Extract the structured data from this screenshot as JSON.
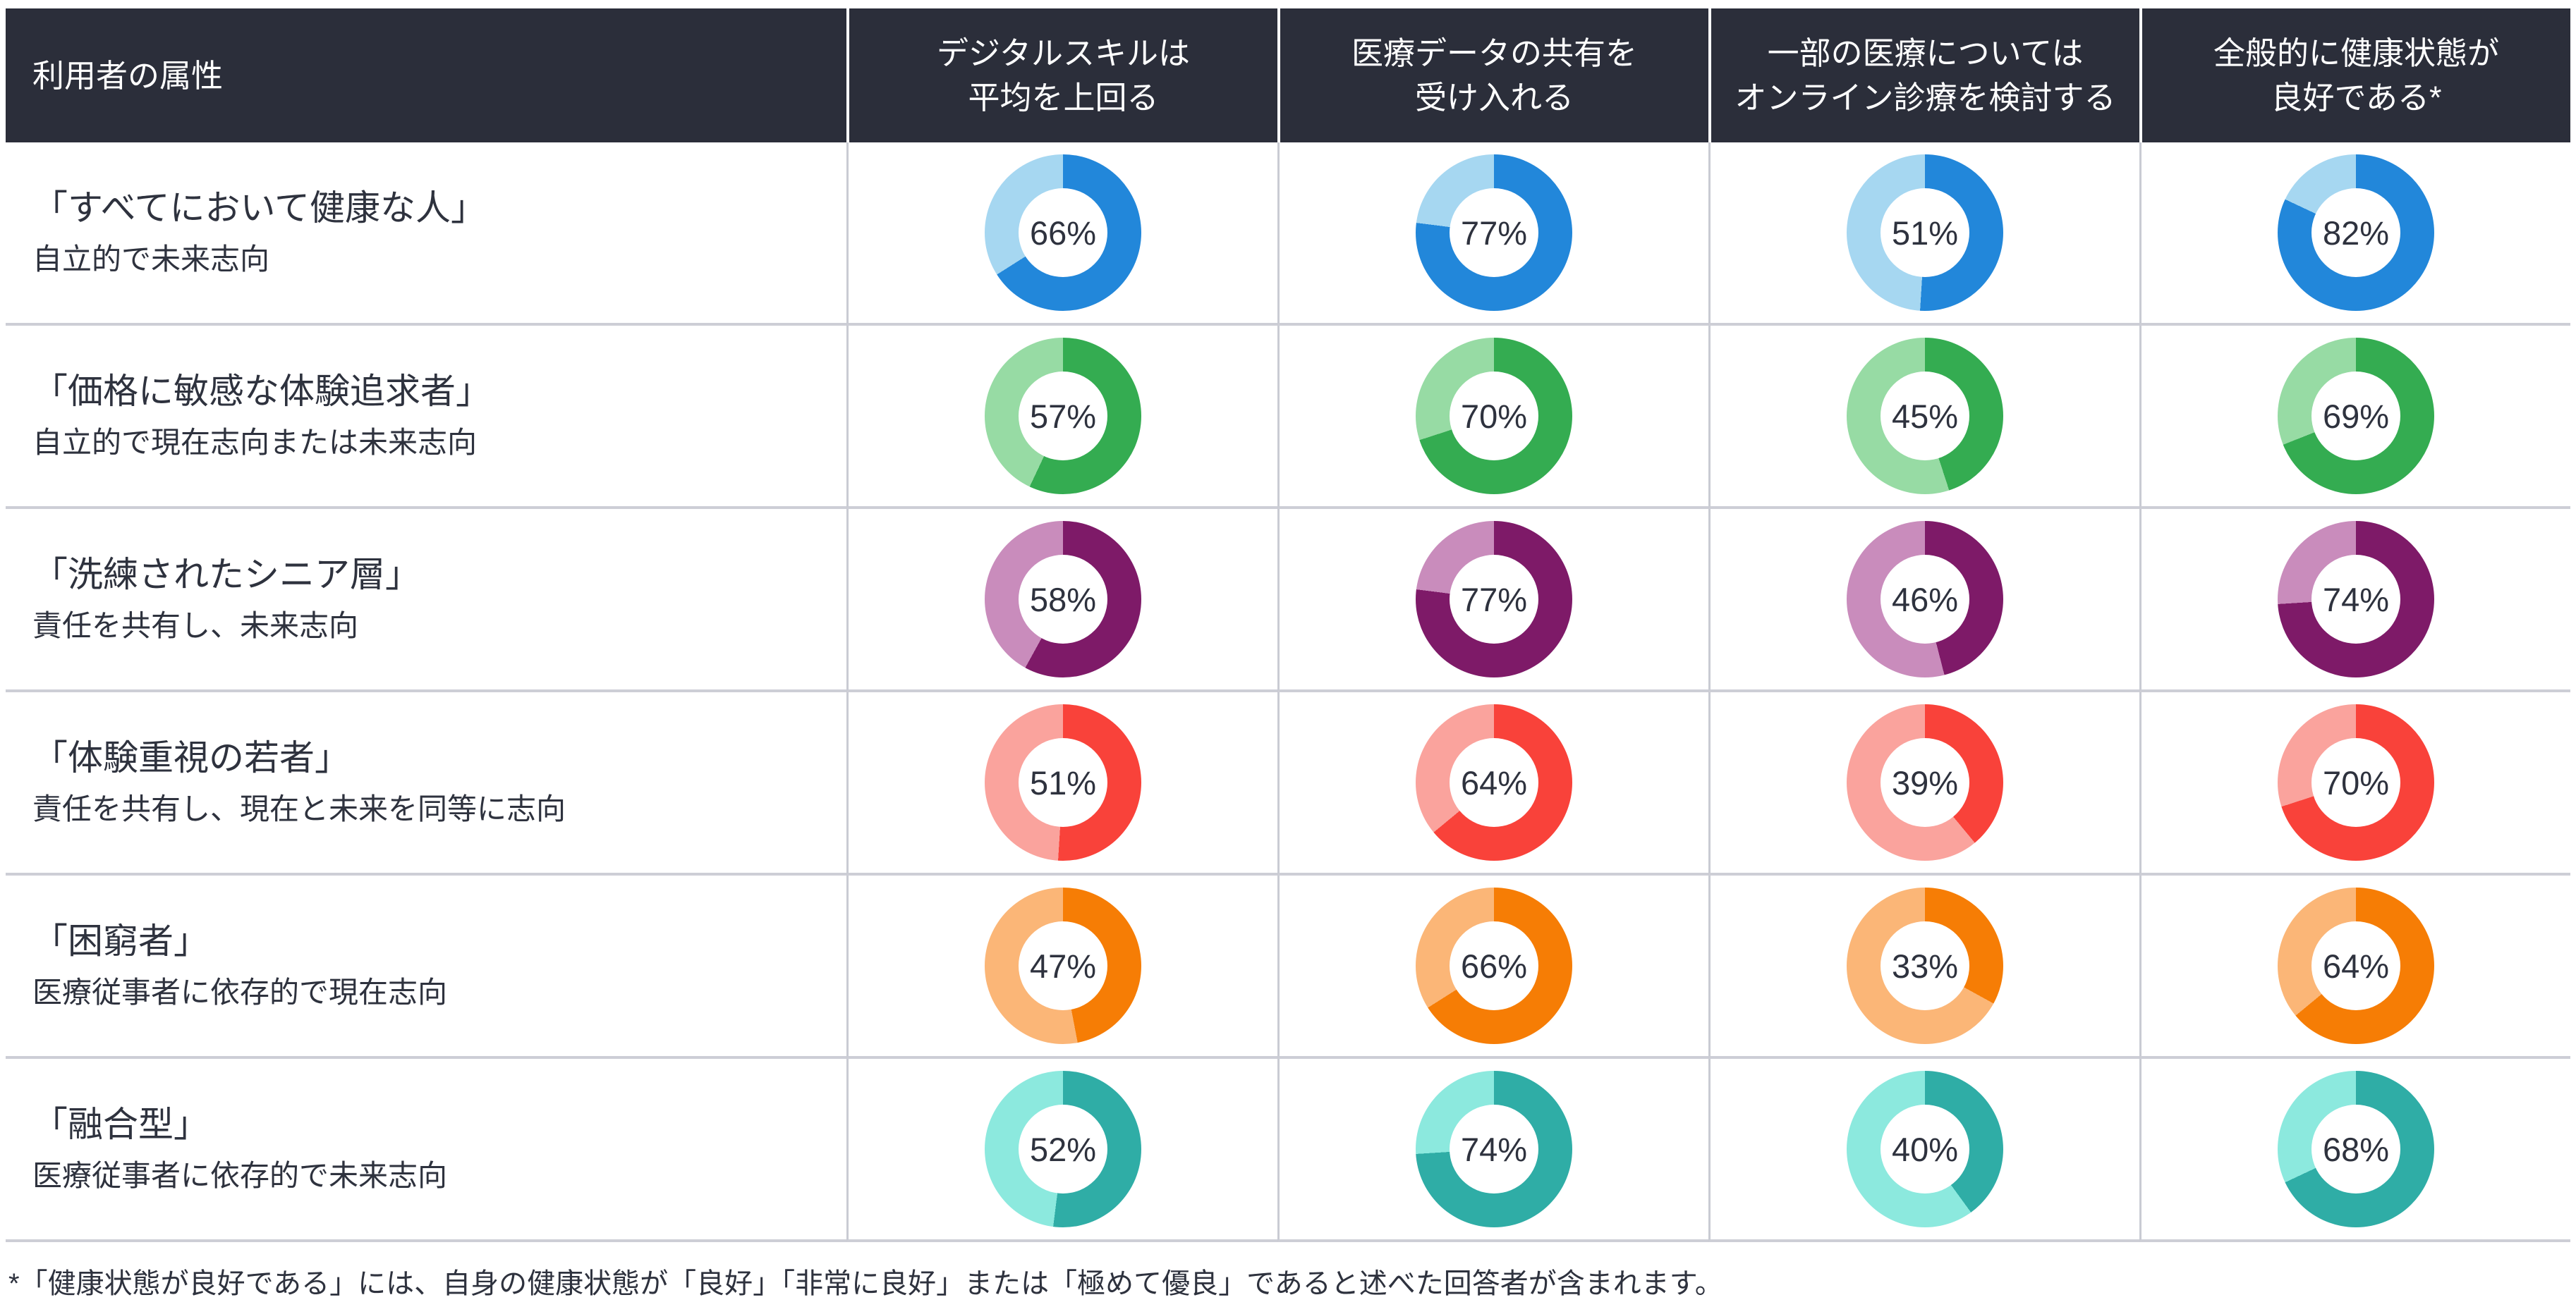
{
  "header": {
    "row_attribute_label": "利用者の属性",
    "columns": [
      "デジタルスキルは\n平均を上回る",
      "医療データの共有を\n受け入れる",
      "一部の医療については\nオンライン診療を検討する",
      "全般的に健康状態が\n良好である*"
    ]
  },
  "rows": [
    {
      "title": "「すべてにおいて健康な人」",
      "subtitle": "自立的で未来志向",
      "colors": {
        "dark": "#2287da",
        "light": "#a6d7f1"
      },
      "values": [
        66,
        77,
        51,
        82
      ]
    },
    {
      "title": "「価格に敏感な体験追求者」",
      "subtitle": "自立的で現在志向または未来志向",
      "colors": {
        "dark": "#34ac51",
        "light": "#97dba4"
      },
      "values": [
        57,
        70,
        45,
        69
      ]
    },
    {
      "title": "「洗練されたシニア層」",
      "subtitle": "責任を共有し、未来志向",
      "colors": {
        "dark": "#7e1a68",
        "light": "#c98cbc"
      },
      "values": [
        58,
        77,
        46,
        74
      ]
    },
    {
      "title": "「体験重視の若者」",
      "subtitle": "責任を共有し、現在と未来を同等に志向",
      "colors": {
        "dark": "#f9423a",
        "light": "#faa39d"
      },
      "values": [
        51,
        64,
        39,
        70
      ]
    },
    {
      "title": "「困窮者」",
      "subtitle": "医療従事者に依存的で現在志向",
      "colors": {
        "dark": "#f67d05",
        "light": "#fbb677"
      },
      "values": [
        47,
        66,
        33,
        64
      ]
    },
    {
      "title": "「融合型」",
      "subtitle": "医療従事者に依存的で未来志向",
      "colors": {
        "dark": "#2fada6",
        "light": "#8ce9de"
      },
      "values": [
        52,
        74,
        40,
        68
      ]
    }
  ],
  "footnote": "*「健康状態が良好である」には、自身の健康状態が「良好」「非常に良好」または「極めて優良」であると述べた回答者が含まれます。",
  "chart_data": {
    "type": "table",
    "title": "利用者の属性",
    "columns": [
      "デジタルスキルは平均を上回る",
      "医療データの共有を受け入れる",
      "一部の医療についてはオンライン診療を検討する",
      "全般的に健康状態が良好である*"
    ],
    "row_categories": [
      "「すべてにおいて健康な人」",
      "「価格に敏感な体験追求者」",
      "「洗練されたシニア層」",
      "「体験重視の若者」",
      "「困窮者」",
      "「融合型」"
    ],
    "row_descriptions": [
      "自立的で未来志向",
      "自立的で現在志向または未来志向",
      "責任を共有し、未来志向",
      "責任を共有し、現在と未来を同等に志向",
      "医療従事者に依存的で現在志向",
      "医療従事者に依存的で未来志向"
    ],
    "values_percent": [
      [
        66,
        77,
        51,
        82
      ],
      [
        57,
        70,
        45,
        69
      ],
      [
        58,
        77,
        46,
        74
      ],
      [
        51,
        64,
        39,
        70
      ],
      [
        47,
        66,
        33,
        64
      ],
      [
        52,
        74,
        40,
        68
      ]
    ],
    "unit": "%",
    "display": "donut charts, dark segment = value starting at 12 o'clock clockwise, light segment = remainder",
    "footnote": "*「健康状態が良好である」には、自身の健康状態が「良好」「非常に良好」または「極めて優良」であると述べた回答者が含まれます。"
  }
}
